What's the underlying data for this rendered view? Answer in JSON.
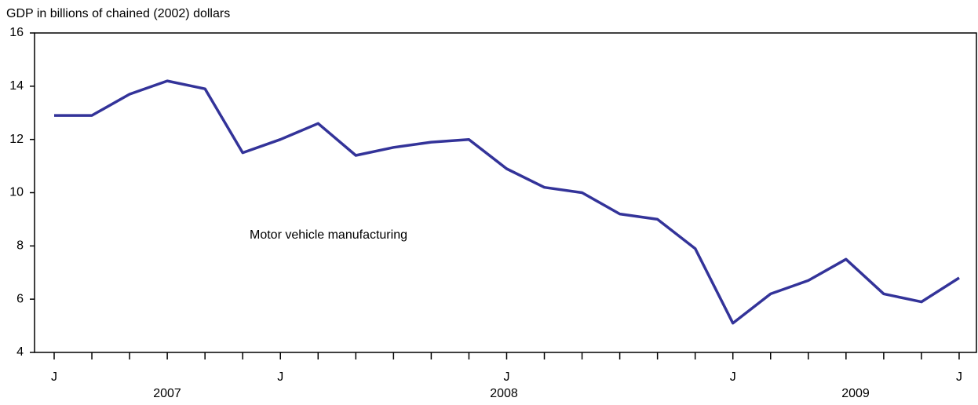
{
  "chart_data": {
    "type": "line",
    "title": "GDP in billions of chained (2002) dollars",
    "annotation": "Motor vehicle manufacturing",
    "categories": [
      "J",
      null,
      null,
      null,
      null,
      null,
      "J",
      null,
      null,
      null,
      null,
      null,
      "J",
      null,
      null,
      null,
      null,
      null,
      "J",
      null,
      null,
      null,
      null,
      null,
      "J"
    ],
    "year_labels": [
      "2007",
      "2008",
      "2009"
    ],
    "series": [
      {
        "name": "Motor vehicle manufacturing",
        "color": "#333399",
        "values": [
          12.9,
          12.9,
          13.7,
          14.2,
          13.9,
          11.5,
          12.0,
          12.6,
          11.4,
          11.7,
          11.9,
          12.0,
          10.9,
          10.2,
          10.0,
          9.2,
          9.0,
          7.9,
          5.1,
          6.2,
          6.7,
          7.5,
          6.2,
          5.9,
          6.8
        ]
      }
    ],
    "ylim": [
      4,
      16
    ],
    "yticks": [
      4,
      6,
      8,
      10,
      12,
      14,
      16
    ],
    "grid": false
  }
}
